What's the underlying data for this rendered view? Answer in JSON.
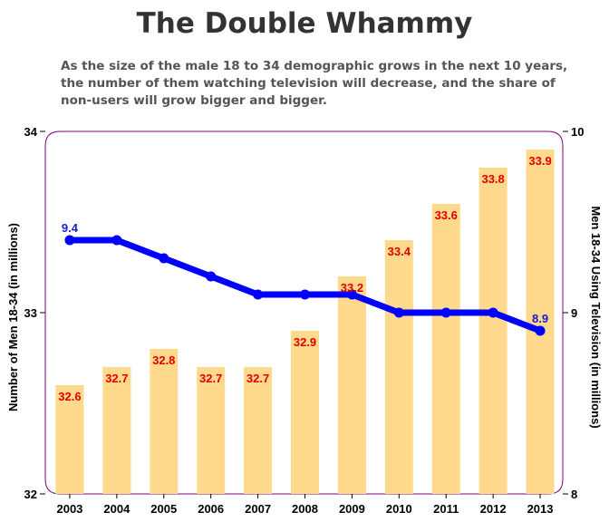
{
  "title": "The Double Whammy",
  "subtitle": "As the size of the male 18 to 34 demographic grows in the next 10 years, the number of them watching television will decrease, and the share of non-users will grow bigger and bigger.",
  "colors": {
    "bar": "#ffd98c",
    "line": "#0000ff",
    "bar_label": "#e00000",
    "line_label": "#1a1ad0",
    "frame": "#800080"
  },
  "chart_data": {
    "type": "bar",
    "categories": [
      "2003",
      "2004",
      "2005",
      "2006",
      "2007",
      "2008",
      "2009",
      "2010",
      "2011",
      "2012",
      "2013"
    ],
    "series": [
      {
        "type": "bar",
        "axis": "left",
        "values": [
          32.6,
          32.7,
          32.8,
          32.7,
          32.7,
          32.9,
          33.2,
          33.4,
          33.6,
          33.8,
          33.9
        ],
        "labels": [
          "32.6",
          "32.7",
          "32.8",
          "32.7",
          "32.7",
          "32.9",
          "33.2",
          "33.4",
          "33.6",
          "33.8",
          "33.9"
        ]
      },
      {
        "type": "line",
        "axis": "right",
        "values": [
          9.4,
          9.4,
          9.3,
          9.2,
          9.1,
          9.1,
          9.1,
          9.0,
          9.0,
          9.0,
          8.9
        ],
        "labels": [
          "9.4",
          "",
          "",
          "",
          "",
          "",
          "",
          "",
          "",
          "",
          "8.9"
        ]
      }
    ],
    "ylabel": "Number of Men 18-34 (in millions)",
    "y2label": "Men 18-34 Using Television (in millions)",
    "ylim": [
      32,
      34
    ],
    "y2lim": [
      8,
      10
    ],
    "yticks": [
      "32",
      "33",
      "34"
    ],
    "y2ticks": [
      "8",
      "9",
      "10"
    ],
    "grid": false,
    "legend": "none"
  }
}
